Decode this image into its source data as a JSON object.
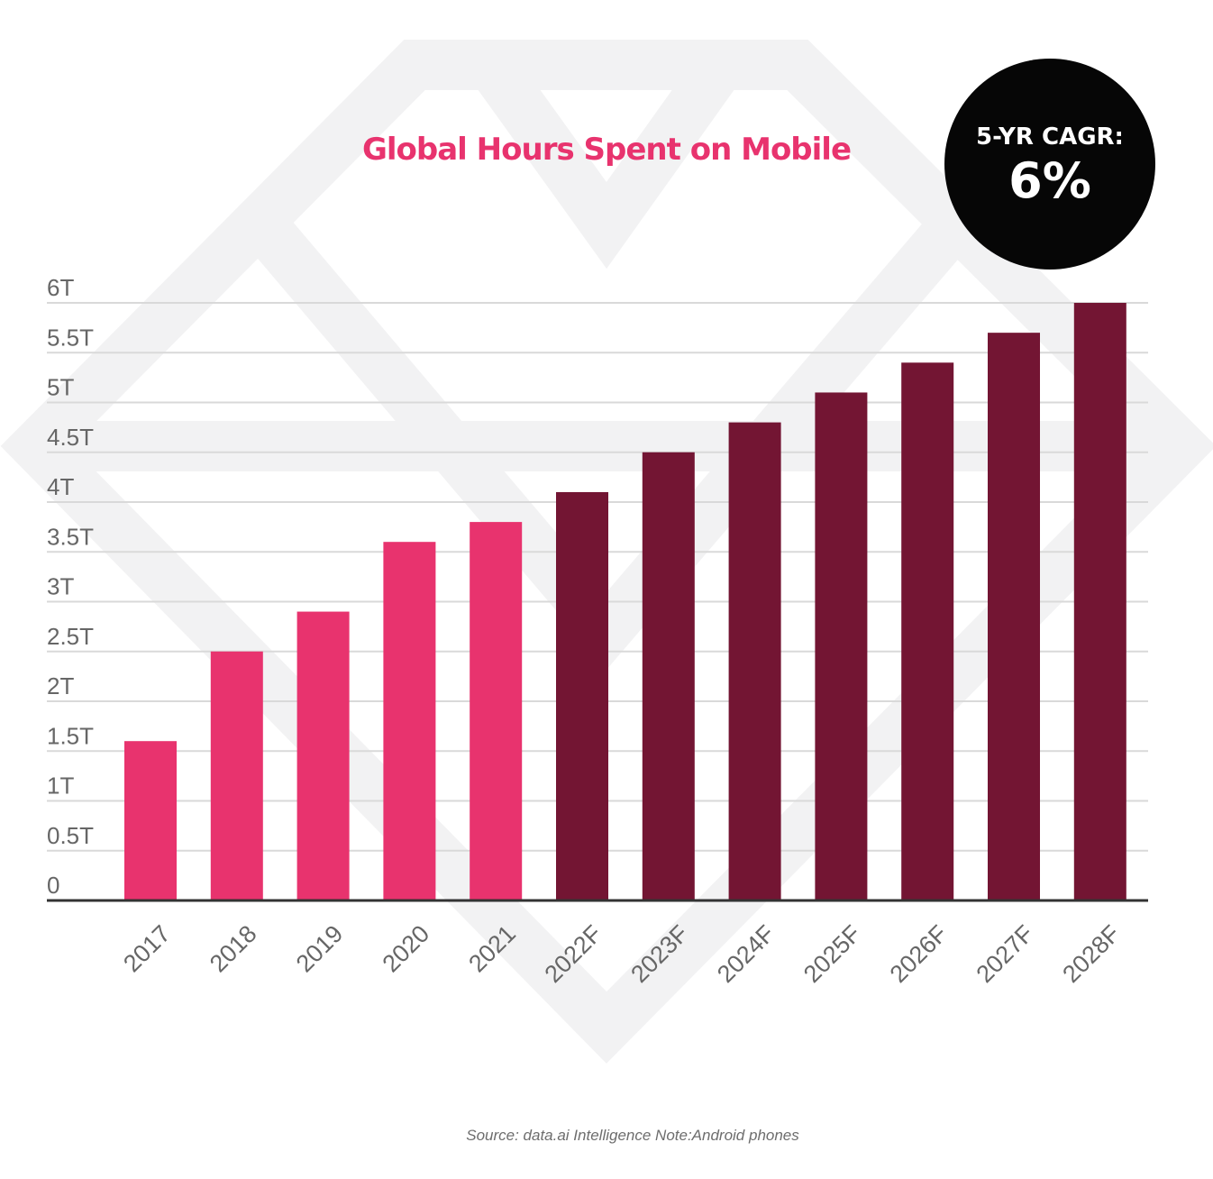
{
  "colors": {
    "actual": "#e8336e",
    "forecast": "#731533",
    "title": "#e8336e",
    "gridline": "#d9d9d9",
    "baseline": "#333333",
    "tick_text": "#666666",
    "badge_bg": "#060606",
    "badge_text": "#ffffff",
    "source_text": "#6d6d6d",
    "watermark": "#f2f2f3"
  },
  "badge": {
    "label": "5-YR CAGR:",
    "value": "6%"
  },
  "source_note": "Source: data.ai Intelligence Note:Android phones",
  "chart_data": {
    "type": "bar",
    "title": "Global Hours Spent on Mobile",
    "xlabel": "",
    "ylabel": "",
    "categories": [
      "2017",
      "2018",
      "2019",
      "2020",
      "2021",
      "2022F",
      "2023F",
      "2024F",
      "2025F",
      "2026F",
      "2027F",
      "2028F"
    ],
    "values": [
      1.6,
      2.5,
      2.9,
      3.6,
      3.8,
      4.1,
      4.5,
      4.8,
      5.1,
      5.4,
      5.7,
      6.0
    ],
    "value_unit": "T",
    "forecast": [
      false,
      false,
      false,
      false,
      false,
      true,
      true,
      true,
      true,
      true,
      true,
      true
    ],
    "ylim": [
      0,
      6
    ],
    "yticks": [
      0,
      0.5,
      1,
      1.5,
      2,
      2.5,
      3,
      3.5,
      4,
      4.5,
      5,
      5.5,
      6
    ],
    "ytick_labels": [
      "0",
      "0.5T",
      "1T",
      "1.5T",
      "2T",
      "2.5T",
      "3T",
      "3.5T",
      "4T",
      "4.5T",
      "5T",
      "5.5T",
      "6T"
    ],
    "grid": true,
    "legend": "none"
  }
}
